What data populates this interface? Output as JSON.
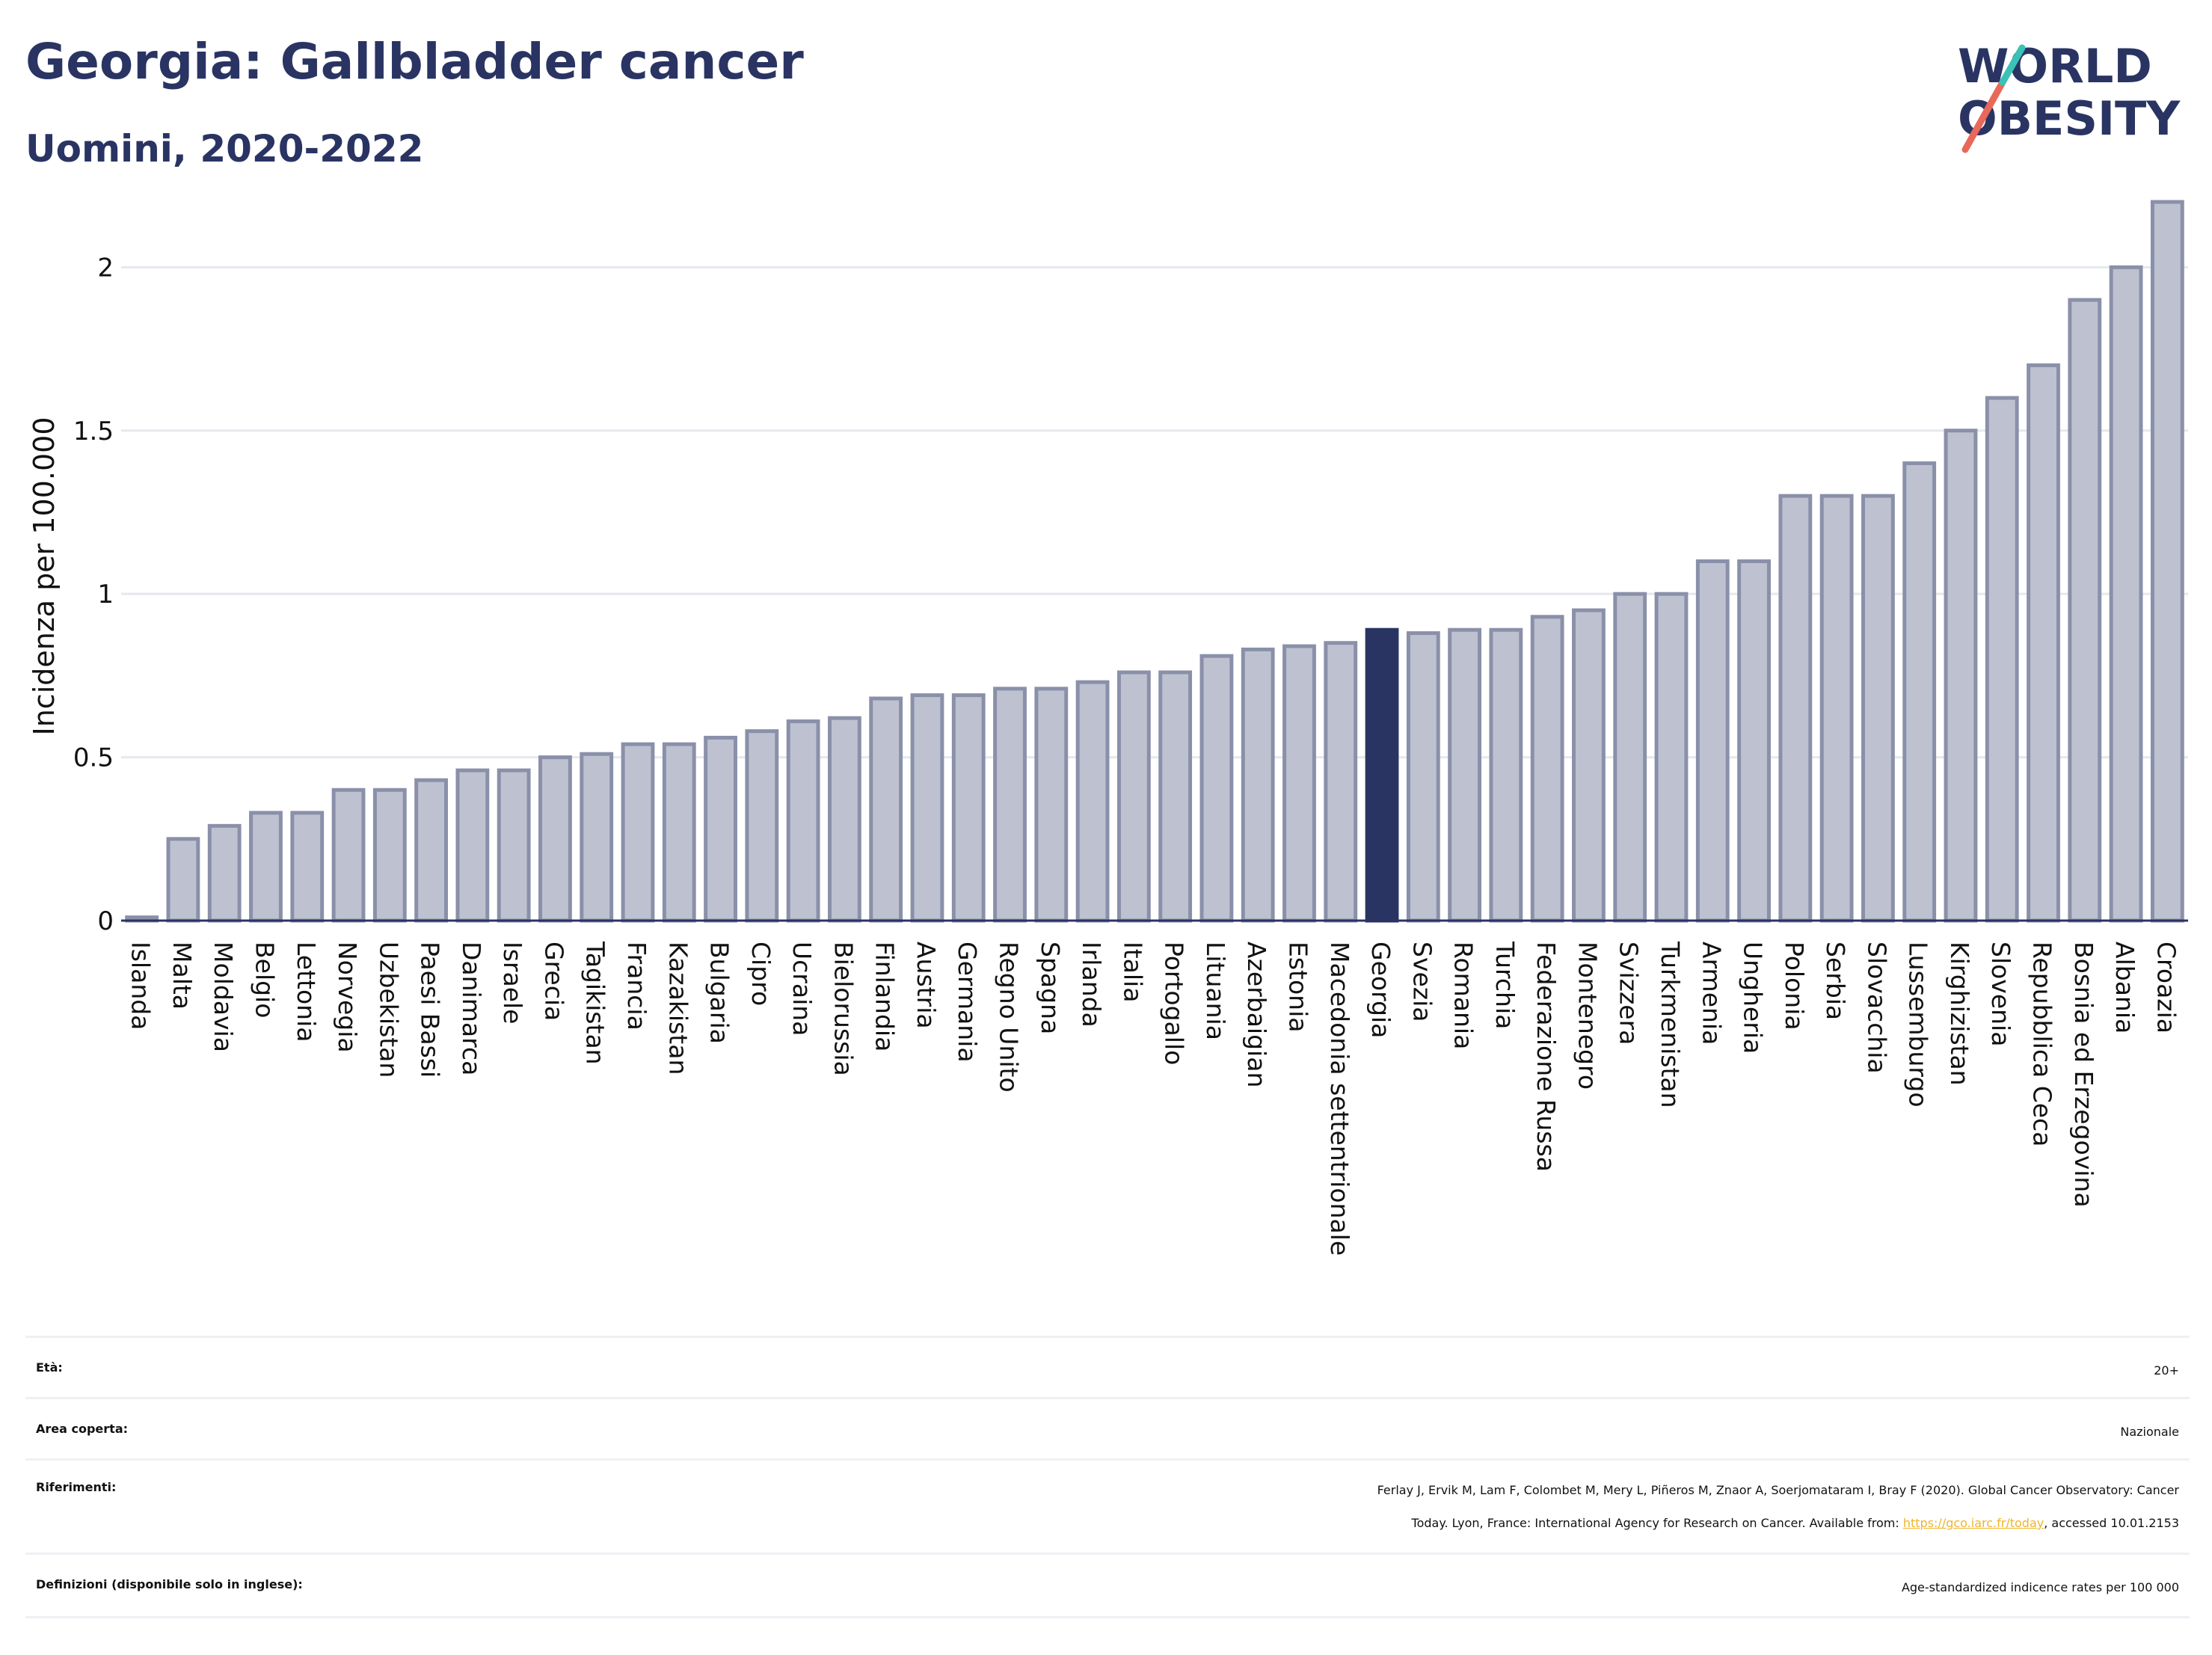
{
  "header": {
    "title": "Georgia: Gallbladder cancer",
    "subtitle": "Uomini, 2020-2022"
  },
  "logo": {
    "line1": "WORLD",
    "line2": "OBESITY",
    "colors": {
      "text": "#2a3463",
      "slash_red": "#e8685a",
      "slash_teal": "#3cc1b7"
    }
  },
  "chart_data": {
    "type": "bar",
    "ylabel": "Incidenza per 100.000",
    "xlabel": "",
    "ylim": [
      0,
      2.2
    ],
    "yticks": [
      0,
      0.5,
      1,
      1.5,
      2
    ],
    "ytick_labels": [
      "0",
      "0.5",
      "1",
      "1.5",
      "2"
    ],
    "grid": true,
    "highlight": "Georgia",
    "colors": {
      "bar": "#bec2d0",
      "bar_edge": "#8a90a9",
      "highlight": "#2a3463",
      "grid": "#e6e8ee"
    },
    "categories": [
      "Islanda",
      "Malta",
      "Moldavia",
      "Belgio",
      "Lettonia",
      "Norvegia",
      "Uzbekistan",
      "Paesi Bassi",
      "Danimarca",
      "Israele",
      "Grecia",
      "Tagikistan",
      "Francia",
      "Kazakistan",
      "Bulgaria",
      "Cipro",
      "Ucraina",
      "Bielorussia",
      "Finlandia",
      "Austria",
      "Germania",
      "Regno Unito",
      "Spagna",
      "Irlanda",
      "Italia",
      "Portogallo",
      "Lituania",
      "Azerbaigian",
      "Estonia",
      "Macedonia settentrionale",
      "Georgia",
      "Svezia",
      "Romania",
      "Turchia",
      "Federazione Russa",
      "Montenegro",
      "Svizzera",
      "Turkmenistan",
      "Armenia",
      "Ungheria",
      "Polonia",
      "Serbia",
      "Slovacchia",
      "Lussemburgo",
      "Kirghizistan",
      "Slovenia",
      "Repubblica Ceca",
      "Bosnia ed Erzegovina",
      "Albania",
      "Croazia"
    ],
    "values": [
      0.01,
      0.25,
      0.29,
      0.33,
      0.33,
      0.4,
      0.4,
      0.43,
      0.46,
      0.46,
      0.5,
      0.51,
      0.54,
      0.54,
      0.56,
      0.58,
      0.61,
      0.62,
      0.68,
      0.69,
      0.69,
      0.71,
      0.71,
      0.73,
      0.76,
      0.76,
      0.81,
      0.83,
      0.84,
      0.85,
      0.89,
      0.88,
      0.89,
      0.89,
      0.93,
      0.95,
      1.0,
      1.0,
      1.1,
      1.1,
      1.3,
      1.3,
      1.3,
      1.4,
      1.5,
      1.6,
      1.7,
      1.9,
      2.0,
      2.2
    ]
  },
  "meta": [
    {
      "label": "Età:",
      "value": "20+"
    },
    {
      "label": "Area coperta:",
      "value": "Nazionale"
    },
    {
      "label": "Riferimenti:",
      "value_line1": "Ferlay J, Ervik M, Lam F, Colombet M, Mery L, Piñeros M, Znaor A, Soerjomataram I, Bray F (2020). Global Cancer Observatory: Cancer",
      "value_line2_pre": "Today. Lyon, France: International Agency for Research on Cancer. Available from: ",
      "link": "https://gco.iarc.fr/today",
      "value_line2_post": ", accessed 10.01.2153"
    },
    {
      "label": "Definizioni (disponibile solo in inglese):",
      "value": "Age-standardized indicence rates per 100 000"
    }
  ]
}
